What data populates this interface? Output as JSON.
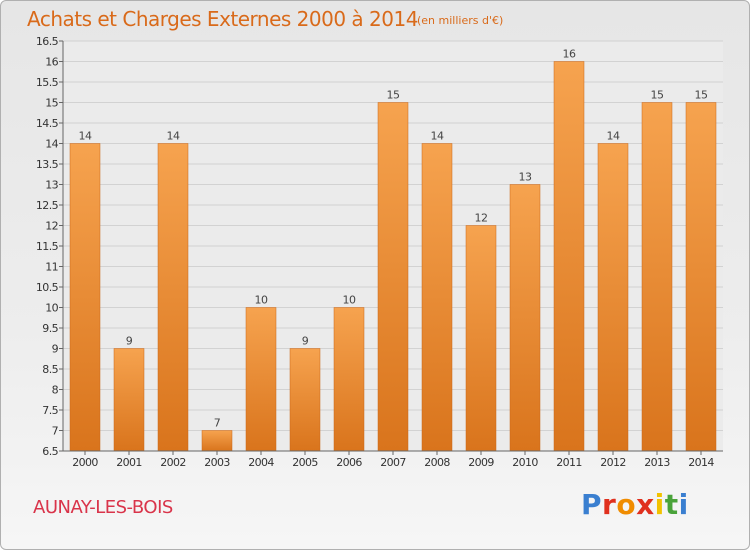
{
  "header": {
    "title": "Achats et Charges Externes 2000 à 2014",
    "subtitle": "(en milliers d'€)"
  },
  "footer": {
    "city": "AUNAY-LES-BOIS",
    "logo_text": "Proxiti"
  },
  "colors": {
    "bar_light": "#f6a34f",
    "bar_dark": "#d9741c",
    "title": "#d96a1a",
    "city": "#d9344a"
  },
  "chart_data": {
    "type": "bar",
    "title": "Achats et Charges Externes 2000 à 2014",
    "subtitle": "(en milliers d'€)",
    "categories": [
      "2000",
      "2001",
      "2002",
      "2003",
      "2004",
      "2005",
      "2006",
      "2007",
      "2008",
      "2009",
      "2010",
      "2011",
      "2012",
      "2013",
      "2014"
    ],
    "values": [
      14,
      9,
      14,
      7,
      10,
      9,
      10,
      15,
      14,
      12,
      13,
      16,
      14,
      15,
      15
    ],
    "data_labels": [
      "14",
      "9",
      "14",
      "7",
      "10",
      "9",
      "10",
      "15",
      "14",
      "12",
      "13",
      "16",
      "14",
      "15",
      "15"
    ],
    "ylim": [
      6.5,
      16.5
    ],
    "yticks": [
      "6.5",
      "7",
      "7.5",
      "8",
      "8.5",
      "9",
      "9.5",
      "10",
      "10.5",
      "11",
      "11.5",
      "12",
      "12.5",
      "13",
      "13.5",
      "14",
      "14.5",
      "15",
      "15.5",
      "16",
      "16.5"
    ],
    "grid": true,
    "legend": "none"
  }
}
